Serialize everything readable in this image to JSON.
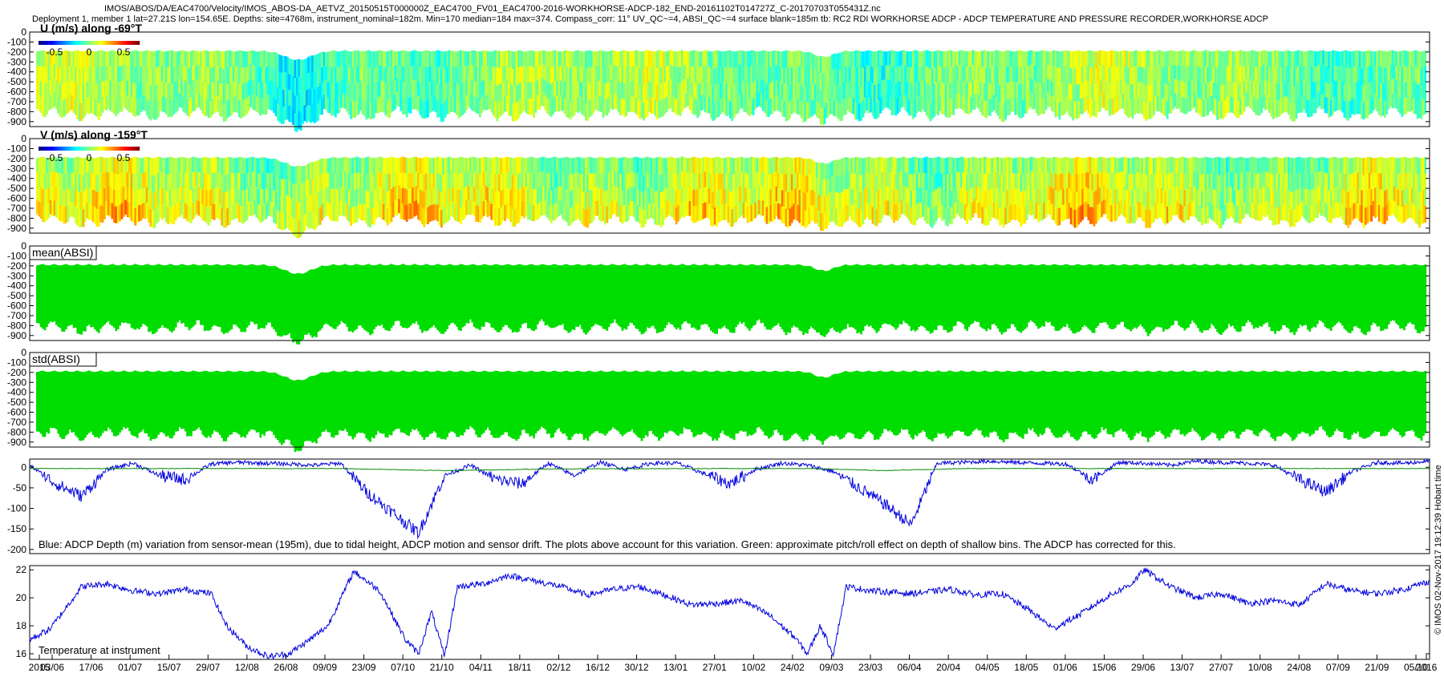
{
  "header": {
    "line1": "IMOS/ABOS/DA/EAC4700/Velocity/IMOS_ABOS-DA_AETVZ_20150515T000000Z_EAC4700_FV01_EAC4700-2016-WORKHORSE-ADCP-182_END-20161102T014727Z_C-20170703T055431Z.nc",
    "line2": "Deployment 1, member 1 lat=27.21S lon=154.65E. Depths: site=4768m, instrument_nominal=182m. Min=170 median=184 max=374. Compass_corr: 11° UV_QC~=4, ABSI_QC~=4 surface blank=185m tb: RC2 RDI WORKHORSE ADCP - ADCP TEMPERATURE AND PRESSURE RECORDER,WORKHORSE ADCP"
  },
  "side_label": "© IMOS 02-Nov-2017 19:12:39 Hobart time",
  "colors": {
    "depth_blue": "#0000dd",
    "pitch_green": "#008800",
    "absi_green": "#00dd00",
    "temp_blue": "#0000dd"
  },
  "colorbar": {
    "ticks": [
      "-0.5",
      "0",
      "0.5"
    ]
  },
  "chart_data": [
    {
      "type": "heatmap",
      "panel": "u",
      "title": "U (m/s) along -69°T",
      "yticks": [
        "0",
        "-100",
        "-200",
        "-300",
        "-400",
        "-500",
        "-600",
        "-700",
        "-800",
        "-900"
      ],
      "ylim": [
        -950,
        0
      ],
      "colorbar_range": [
        -0.8,
        0.8
      ],
      "colormap": "jet",
      "band_depth_top": -180,
      "band_depth_bottom": [
        -850,
        -800,
        -860,
        -940,
        -830,
        -800,
        -820,
        -810,
        -900,
        -820,
        -800,
        -810,
        -800,
        -800
      ]
    },
    {
      "type": "heatmap",
      "panel": "v",
      "title": "V (m/s) along -159°T",
      "yticks": [
        "0",
        "-100",
        "-200",
        "-300",
        "-400",
        "-500",
        "-600",
        "-700",
        "-800",
        "-900"
      ],
      "ylim": [
        -950,
        0
      ],
      "colorbar_range": [
        -0.8,
        0.8
      ],
      "colormap": "jet",
      "band_depth_top": -180
    },
    {
      "type": "heatmap",
      "panel": "mean_absi",
      "title": "mean(ABSI)",
      "yticks": [
        "0",
        "-100",
        "-200",
        "-300",
        "-400",
        "-500",
        "-600",
        "-700",
        "-800",
        "-900"
      ],
      "ylim": [
        -950,
        0
      ]
    },
    {
      "type": "heatmap",
      "panel": "std_absi",
      "title": "std(ABSI)",
      "yticks": [
        "0",
        "-100",
        "-200",
        "-300",
        "-400",
        "-500",
        "-600",
        "-700",
        "-800",
        "-900"
      ],
      "ylim": [
        -950,
        0
      ]
    },
    {
      "type": "line",
      "panel": "depth",
      "caption": "Blue: ADCP Depth (m) variation from sensor-mean (195m), due to tidal height, ADCP motion and sensor drift. The plots above account for this variation. Green: approximate pitch/roll effect on depth of shallow bins. The ADCP has corrected for this.",
      "yticks": [
        "0",
        "-50",
        "-100",
        "-150",
        "-200"
      ],
      "ylim": [
        -210,
        20
      ],
      "series": [
        {
          "color": "blue",
          "x_day": [
            0,
            10,
            20,
            30,
            40,
            50,
            60,
            70,
            80,
            90,
            100,
            110,
            120,
            130,
            140,
            150,
            160,
            170,
            180,
            190,
            200,
            210,
            220,
            230,
            240,
            250,
            260,
            270,
            280,
            290,
            300,
            310,
            320,
            330,
            340,
            350,
            360,
            370,
            380,
            390,
            400,
            410,
            420,
            430,
            440,
            450,
            460,
            470,
            480,
            490,
            500,
            510,
            520,
            530,
            540
          ],
          "y": [
            5,
            -40,
            -70,
            -5,
            10,
            -20,
            -30,
            8,
            12,
            10,
            8,
            5,
            10,
            -60,
            -110,
            -160,
            -20,
            5,
            -30,
            -40,
            10,
            -20,
            12,
            -5,
            10,
            10,
            -15,
            -40,
            -5,
            10,
            5,
            -10,
            -50,
            -90,
            -140,
            10,
            12,
            15,
            12,
            10,
            8,
            -30,
            12,
            10,
            5,
            15,
            12,
            10,
            5,
            -30,
            -60,
            -10,
            12,
            10,
            15
          ]
        },
        {
          "color": "green",
          "x_day": [
            0,
            60,
            120,
            160,
            200,
            260,
            300,
            330,
            360,
            420,
            480,
            540
          ],
          "y": [
            -3,
            -3,
            -3,
            -8,
            -4,
            -3,
            -3,
            -8,
            -3,
            -3,
            -3,
            -3
          ]
        }
      ]
    },
    {
      "type": "line",
      "panel": "temperature",
      "caption": "Temperature at instrument",
      "yticks": [
        "16",
        "18",
        "20",
        "22"
      ],
      "ylim": [
        15.6,
        22.3
      ],
      "series": [
        {
          "color": "blue",
          "x_day": [
            0,
            8,
            20,
            30,
            40,
            50,
            60,
            70,
            76,
            84,
            92,
            100,
            108,
            115,
            125,
            135,
            145,
            150,
            155,
            160,
            165,
            175,
            185,
            195,
            205,
            215,
            225,
            235,
            245,
            255,
            265,
            275,
            285,
            295,
            300,
            305,
            310,
            315,
            325,
            340,
            355,
            365,
            375,
            385,
            395,
            405,
            415,
            425,
            430,
            440,
            450,
            460,
            470,
            480,
            490,
            500,
            510,
            520,
            530,
            540
          ],
          "y": [
            17,
            17.8,
            20.8,
            21,
            20.5,
            20.3,
            20.6,
            20.3,
            18,
            16.5,
            15.8,
            16,
            17,
            18,
            21.9,
            20.5,
            17,
            16,
            19,
            15.8,
            20.8,
            21,
            21.6,
            21.2,
            20.8,
            20.2,
            20.6,
            20.8,
            20.2,
            19.5,
            19.6,
            19.8,
            18.8,
            17.2,
            16,
            18,
            16,
            20.8,
            20.5,
            20.3,
            20.6,
            20.2,
            20.3,
            19.2,
            17.8,
            18.8,
            20,
            21,
            22,
            20.8,
            20,
            20.3,
            19.6,
            19.8,
            19.5,
            21,
            20.5,
            20.3,
            20.6,
            21.2
          ]
        }
      ]
    }
  ],
  "x_axis": {
    "ticks": [
      "2015",
      "03/06",
      "17/06",
      "01/07",
      "15/07",
      "29/07",
      "12/08",
      "26/08",
      "09/09",
      "23/09",
      "07/10",
      "21/10",
      "04/11",
      "18/11",
      "02/12",
      "16/12",
      "30/12",
      "13/01",
      "27/01",
      "10/02",
      "24/02",
      "09/03",
      "23/03",
      "06/04",
      "20/04",
      "04/05",
      "18/05",
      "01/06",
      "15/06",
      "29/06",
      "13/07",
      "27/07",
      "10/08",
      "24/08",
      "07/09",
      "21/09",
      "05/10",
      "2016"
    ]
  }
}
